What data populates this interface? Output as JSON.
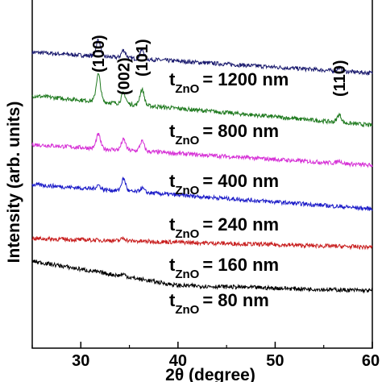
{
  "chart_data": {
    "type": "line",
    "xlabel": "2θ (degree)",
    "ylabel": "Intensity (arb. units)",
    "xlim": [
      25,
      60
    ],
    "x_ticks": [
      "30",
      "40",
      "50",
      "60"
    ],
    "y_ticks_shown": false,
    "grid": false,
    "peak_labels": [
      {
        "text": "(100)",
        "x": 31.8
      },
      {
        "text": "(002)",
        "x": 34.4
      },
      {
        "text": "(101)",
        "x": 36.3
      },
      {
        "text": "(110)",
        "x": 56.6
      }
    ],
    "series": [
      {
        "name": "1200 nm",
        "label_prefix": "t",
        "label_sub": "ZnO",
        "label_value": "= 1200 nm",
        "color": "#1a1a6e",
        "baseline": [
          [
            25,
            0.85
          ],
          [
            60,
            0.79
          ]
        ],
        "peaks": [
          [
            31.8,
            0.048
          ],
          [
            34.4,
            0.022
          ],
          [
            36.3,
            0.026
          ],
          [
            56.6,
            0.01
          ]
        ]
      },
      {
        "name": "800 nm",
        "label_prefix": "t",
        "label_sub": "ZnO",
        "label_value": "= 800 nm",
        "color": "#1f7a1f",
        "baseline": [
          [
            25,
            0.725
          ],
          [
            60,
            0.64
          ]
        ],
        "peaks": [
          [
            31.8,
            0.078
          ],
          [
            34.4,
            0.03
          ],
          [
            36.3,
            0.045
          ],
          [
            56.6,
            0.022
          ]
        ]
      },
      {
        "name": "400 nm",
        "label_prefix": "t",
        "label_sub": "ZnO",
        "label_value": "= 400 nm",
        "color": "#d630d6",
        "baseline": [
          [
            25,
            0.585
          ],
          [
            60,
            0.525
          ]
        ],
        "peaks": [
          [
            31.8,
            0.04
          ],
          [
            34.4,
            0.03
          ],
          [
            36.3,
            0.028
          ],
          [
            56.6,
            0.008
          ]
        ]
      },
      {
        "name": "240 nm",
        "label_prefix": "t",
        "label_sub": "ZnO",
        "label_value": "= 240 nm",
        "color": "#1c1cc8",
        "baseline": [
          [
            25,
            0.47
          ],
          [
            60,
            0.4
          ]
        ],
        "peaks": [
          [
            31.8,
            0.012
          ],
          [
            34.4,
            0.035
          ],
          [
            36.3,
            0.012
          ]
        ]
      },
      {
        "name": "160 nm",
        "label_prefix": "t",
        "label_sub": "ZnO",
        "label_value": "= 160 nm",
        "color": "#c81e1e",
        "baseline": [
          [
            25,
            0.315
          ],
          [
            60,
            0.29
          ]
        ],
        "peaks": [
          [
            34.4,
            0.008
          ]
        ]
      },
      {
        "name": "80 nm",
        "label_prefix": "t",
        "label_sub": "ZnO",
        "label_value": "= 80 nm",
        "color": "#000000",
        "baseline": [
          [
            25,
            0.25
          ],
          [
            40,
            0.18
          ],
          [
            60,
            0.165
          ]
        ],
        "peaks": [
          [
            34.4,
            0.006
          ]
        ]
      }
    ]
  }
}
